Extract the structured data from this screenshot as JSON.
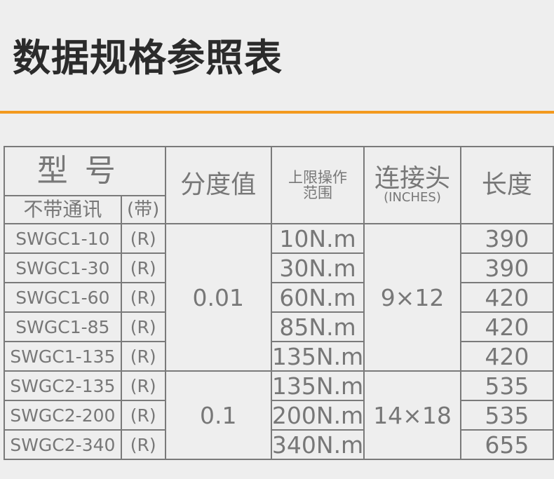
{
  "title": "数据规格参照表",
  "colors": {
    "accent_rule": "#f39a1e",
    "text": "#777777",
    "title": "#2b2b2b"
  },
  "header": {
    "model": "型号",
    "model_no_comm": "不带通讯",
    "model_with_comm": "(带)",
    "resolution": "分度值",
    "range_line1": "上限操作",
    "range_line2": "范围",
    "connector": "连接头",
    "connector_unit": "(INCHES)",
    "length": "长度"
  },
  "groups": [
    {
      "resolution": "0.01",
      "connector": "9×12"
    },
    {
      "resolution": "0.1",
      "connector": "14×18"
    }
  ],
  "rows": [
    {
      "model": "SWGC1-10",
      "suffix": "(R)",
      "range": "10N.m",
      "length": "390"
    },
    {
      "model": "SWGC1-30",
      "suffix": "(R)",
      "range": "30N.m",
      "length": "390"
    },
    {
      "model": "SWGC1-60",
      "suffix": "(R)",
      "range": "60N.m",
      "length": "420"
    },
    {
      "model": "SWGC1-85",
      "suffix": "(R)",
      "range": "85N.m",
      "length": "420"
    },
    {
      "model": "SWGC1-135",
      "suffix": "(R)",
      "range": "135N.m",
      "length": "420"
    },
    {
      "model": "SWGC2-135",
      "suffix": "(R)",
      "range": "135N.m",
      "length": "535"
    },
    {
      "model": "SWGC2-200",
      "suffix": "(R)",
      "range": "200N.m",
      "length": "535"
    },
    {
      "model": "SWGC2-340",
      "suffix": "(R)",
      "range": "340N.m",
      "length": "655"
    }
  ]
}
